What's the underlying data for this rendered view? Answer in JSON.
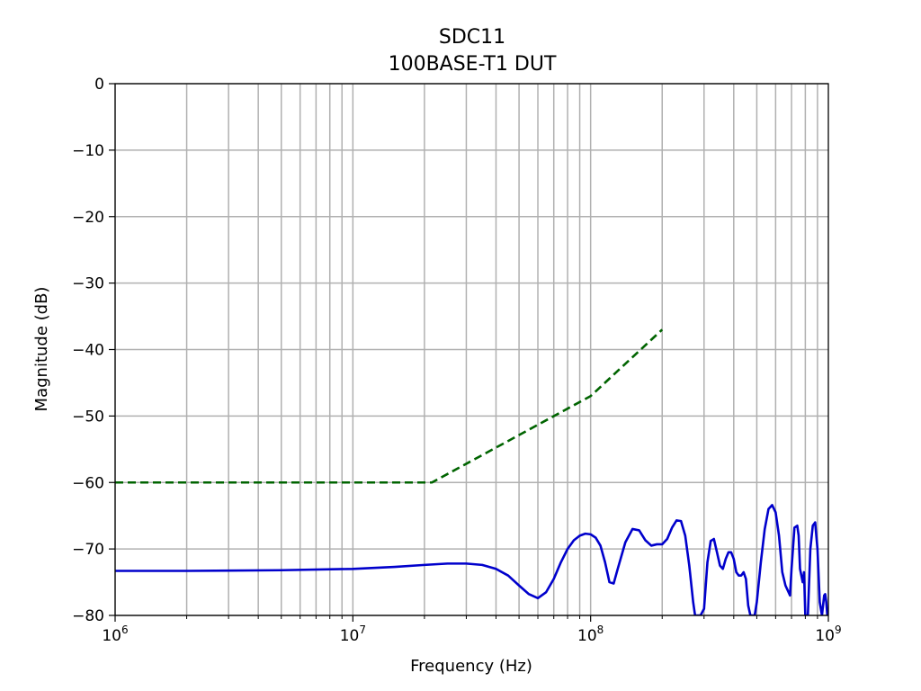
{
  "chart_data": {
    "type": "line",
    "title": "SDC11",
    "subtitle": "100BASE-T1 DUT",
    "xlabel": "Frequency (Hz)",
    "ylabel": "Magnitude (dB)",
    "x_scale": "log",
    "xlim": [
      1000000,
      1000000000
    ],
    "ylim": [
      -80,
      0
    ],
    "x_ticks": [
      {
        "value": 1000000,
        "base": "10",
        "exp": "6"
      },
      {
        "value": 10000000,
        "base": "10",
        "exp": "7"
      },
      {
        "value": 100000000,
        "base": "10",
        "exp": "8"
      },
      {
        "value": 1000000000,
        "base": "10",
        "exp": "9"
      }
    ],
    "y_ticks": [
      {
        "value": 0,
        "label": "0"
      },
      {
        "value": -10,
        "label": "−10"
      },
      {
        "value": -20,
        "label": "−20"
      },
      {
        "value": -30,
        "label": "−30"
      },
      {
        "value": -40,
        "label": "−40"
      },
      {
        "value": -50,
        "label": "−50"
      },
      {
        "value": -60,
        "label": "−60"
      },
      {
        "value": -70,
        "label": "−70"
      },
      {
        "value": -80,
        "label": "−80"
      }
    ],
    "grid": true,
    "series": [
      {
        "style": "solid",
        "color": "#0000cc",
        "x": [
          1000000,
          2000000,
          5000000,
          10000000,
          15000000,
          20000000,
          25000000,
          30000000,
          35000000,
          40000000,
          45000000,
          50000000,
          55000000,
          60000000,
          65000000,
          70000000,
          75000000,
          80000000,
          85000000,
          90000000,
          95000000,
          100000000,
          105000000,
          110000000,
          115000000,
          120000000,
          125000000,
          130000000,
          140000000,
          150000000,
          160000000,
          170000000,
          180000000,
          190000000,
          200000000,
          210000000,
          220000000,
          230000000,
          240000000,
          250000000,
          260000000,
          270000000,
          275000000,
          280000000,
          290000000,
          300000000,
          310000000,
          320000000,
          330000000,
          340000000,
          350000000,
          360000000,
          370000000,
          380000000,
          390000000,
          400000000,
          410000000,
          420000000,
          430000000,
          440000000,
          450000000,
          460000000,
          470000000,
          480000000,
          490000000,
          500000000,
          520000000,
          540000000,
          560000000,
          580000000,
          600000000,
          620000000,
          640000000,
          660000000,
          680000000,
          690000000,
          700000000,
          720000000,
          740000000,
          750000000,
          760000000,
          780000000,
          790000000,
          800000000,
          810000000,
          820000000,
          840000000,
          860000000,
          880000000,
          900000000,
          920000000,
          940000000,
          960000000,
          970000000,
          980000000,
          990000000,
          1000000000
        ],
        "y": [
          -73.3,
          -73.3,
          -73.2,
          -73.0,
          -72.7,
          -72.4,
          -72.2,
          -72.2,
          -72.4,
          -73.0,
          -74.0,
          -75.5,
          -76.8,
          -77.4,
          -76.5,
          -74.5,
          -72.0,
          -70.0,
          -68.7,
          -68.0,
          -67.7,
          -67.8,
          -68.3,
          -69.5,
          -72.0,
          -75.0,
          -75.2,
          -73.0,
          -69.0,
          -67.0,
          -67.2,
          -68.7,
          -69.5,
          -69.3,
          -69.3,
          -68.5,
          -66.8,
          -65.7,
          -65.8,
          -68.0,
          -72.5,
          -78.0,
          -80.0,
          -80.0,
          -80.0,
          -79.0,
          -72.0,
          -68.8,
          -68.5,
          -70.5,
          -72.5,
          -73.0,
          -71.5,
          -70.5,
          -70.5,
          -71.5,
          -73.5,
          -74.0,
          -74.0,
          -73.5,
          -74.5,
          -78.5,
          -80.0,
          -80.0,
          -80.0,
          -78.0,
          -72.0,
          -67.0,
          -64.0,
          -63.4,
          -64.5,
          -68.0,
          -73.5,
          -75.5,
          -76.5,
          -77.0,
          -73.0,
          -66.8,
          -66.5,
          -68.0,
          -73.0,
          -75.0,
          -73.5,
          -80.0,
          -80.0,
          -80.0,
          -70.0,
          -66.5,
          -66.0,
          -70.0,
          -78.0,
          -80.0,
          -77.0,
          -76.8,
          -78.0,
          -80.0,
          -80.0
        ]
      },
      {
        "style": "dashed",
        "color": "#006400",
        "x": [
          1000000,
          21500000,
          100000000,
          200000000
        ],
        "y": [
          -60,
          -60,
          -47.0,
          -37.0
        ]
      }
    ]
  }
}
